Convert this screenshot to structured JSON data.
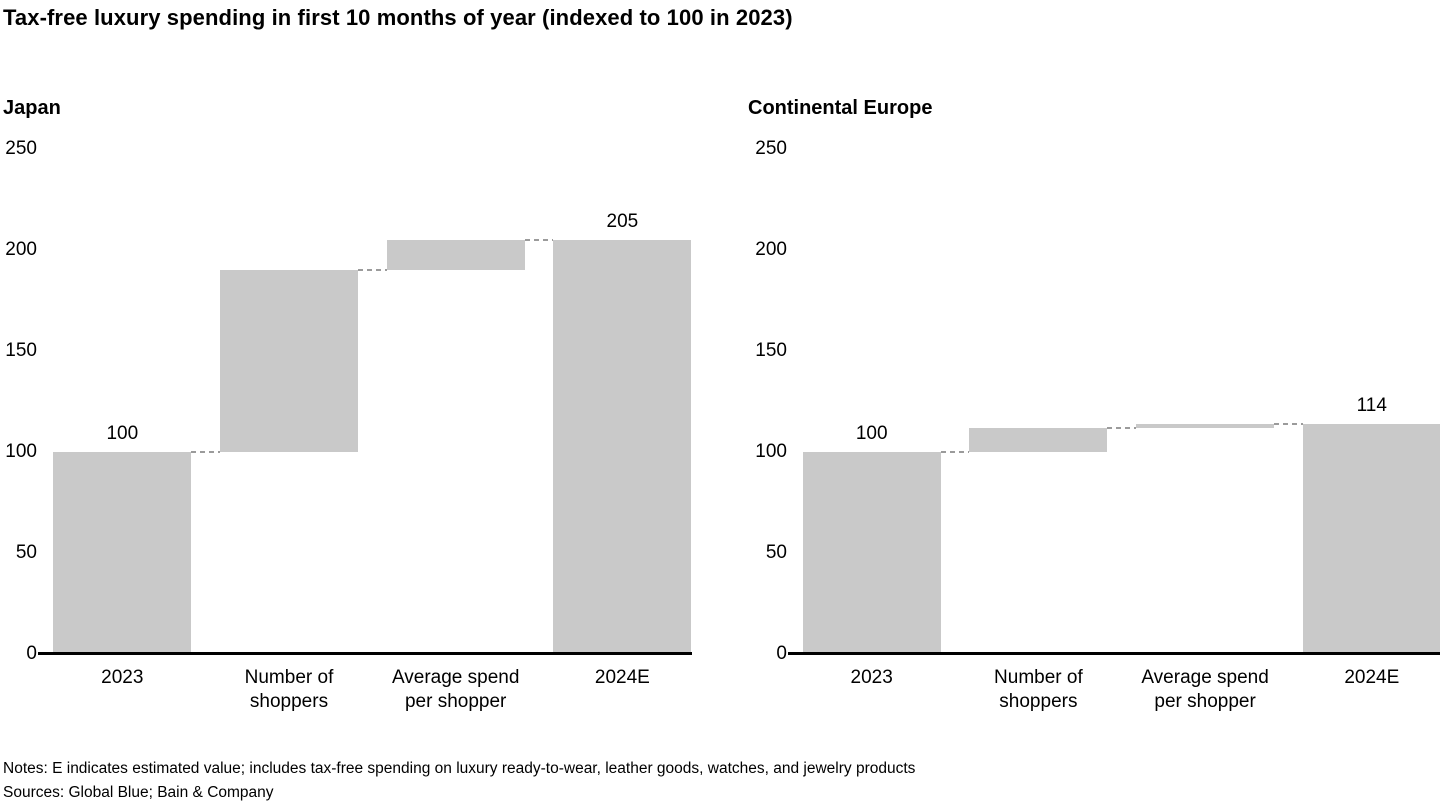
{
  "title": "Tax-free luxury spending in first 10 months of year (indexed to 100 in 2023)",
  "footer": {
    "notes": "Notes: E indicates estimated value; includes tax-free spending on luxury ready-to-wear, leather goods, watches, and jewelry products",
    "sources": "Sources: Global Blue; Bain & Company"
  },
  "colors": {
    "bar": "#c9c9c9",
    "axis": "#000000",
    "connector": "#9b9b9b",
    "text": "#000000",
    "background": "#ffffff"
  },
  "chart_data": [
    {
      "type": "bar",
      "variant": "waterfall",
      "title": "Japan",
      "categories": [
        "2023",
        "Number of shoppers",
        "Average spend per shopper",
        "2024E"
      ],
      "ylim": [
        0,
        250
      ],
      "yticks": [
        0,
        50,
        100,
        150,
        200,
        250
      ],
      "grid": false,
      "legend": "none",
      "bars": [
        {
          "category": "2023",
          "start": 0,
          "end": 100,
          "label": "100"
        },
        {
          "category": "Number of shoppers",
          "start": 100,
          "end": 190,
          "label": ""
        },
        {
          "category": "Average spend per shopper",
          "start": 190,
          "end": 205,
          "label": ""
        },
        {
          "category": "2024E",
          "start": 0,
          "end": 205,
          "label": "205"
        }
      ]
    },
    {
      "type": "bar",
      "variant": "waterfall",
      "title": "Continental Europe",
      "categories": [
        "2023",
        "Number of shoppers",
        "Average spend per shopper",
        "2024E"
      ],
      "ylim": [
        0,
        250
      ],
      "yticks": [
        0,
        50,
        100,
        150,
        200,
        250
      ],
      "grid": false,
      "legend": "none",
      "bars": [
        {
          "category": "2023",
          "start": 0,
          "end": 100,
          "label": "100"
        },
        {
          "category": "Number of shoppers",
          "start": 100,
          "end": 112,
          "label": ""
        },
        {
          "category": "Average spend per shopper",
          "start": 112,
          "end": 114,
          "label": ""
        },
        {
          "category": "2024E",
          "start": 0,
          "end": 114,
          "label": "114"
        }
      ]
    }
  ]
}
